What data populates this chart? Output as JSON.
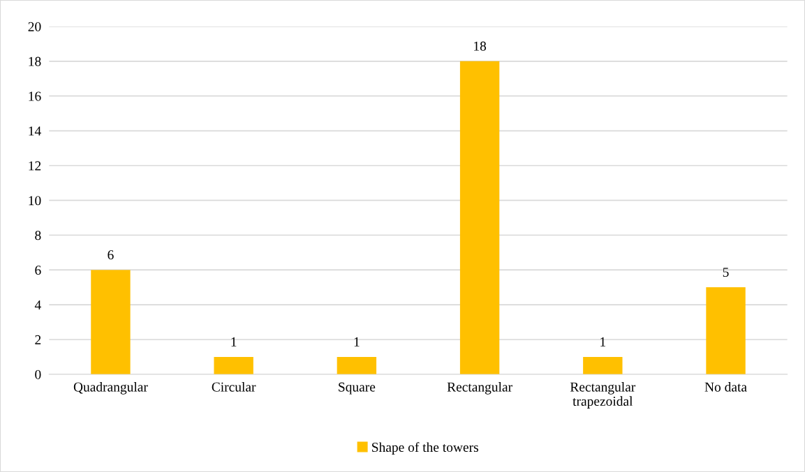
{
  "chart_data": {
    "type": "bar",
    "categories": [
      "Quadrangular",
      "Circular",
      "Square",
      "Rectangular",
      "Rectangular\ntrapezoidal",
      "No data"
    ],
    "series": [
      {
        "name": "Shape of the towers",
        "color": "#ffc000",
        "values": [
          6,
          1,
          1,
          18,
          1,
          5
        ]
      }
    ],
    "ylim": [
      0,
      20
    ],
    "yticks": [
      0,
      2,
      4,
      6,
      8,
      10,
      12,
      14,
      16,
      18,
      20
    ],
    "grid": "y",
    "legend": "bottom",
    "data_labels": true
  }
}
